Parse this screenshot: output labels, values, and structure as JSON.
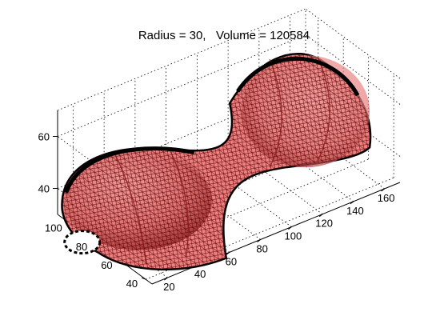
{
  "chart_data": {
    "type": "surface3d",
    "title": "Radius = 30,   Volume = 120584",
    "xlabel": "",
    "ylabel": "",
    "zlabel": "",
    "grid": true,
    "x_axis": {
      "ticks": [
        20,
        40,
        60,
        80,
        100,
        120,
        140,
        160
      ],
      "range": [
        10,
        170
      ]
    },
    "y_axis": {
      "ticks": [
        40,
        60,
        80,
        100
      ],
      "range": [
        35,
        110
      ]
    },
    "z_axis": {
      "ticks": [
        40,
        60
      ],
      "range": [
        30,
        70
      ]
    },
    "surface": {
      "description_free": true,
      "face_color": "#f08080",
      "edge_color": "#330000",
      "dark_color": "#8b1a1a",
      "lobes": [
        {
          "x_center": 45,
          "y_center": 70,
          "radius": 30
        },
        {
          "x_center": 135,
          "y_center": 70,
          "radius": 30
        }
      ]
    }
  }
}
